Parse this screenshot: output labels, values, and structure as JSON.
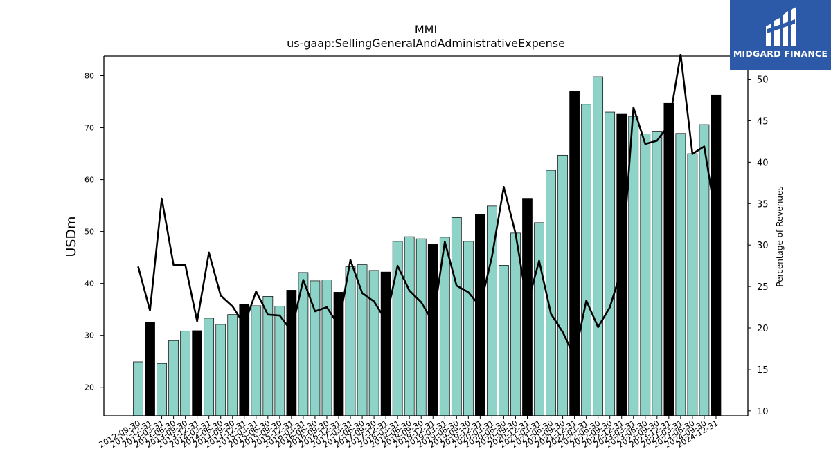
{
  "brand": {
    "name": "MIDGARD FINANCE",
    "bg_color": "#2d5aa8"
  },
  "chart_data": {
    "type": "bar",
    "title": "MMI",
    "subtitle": "us-gaap:SellingGeneralAndAdministrativeExpense",
    "ylabel": "USDm",
    "y2label": "Percentage of Revenues",
    "ylim": [
      14.5,
      83.8
    ],
    "y2lim": [
      9.4,
      52.8
    ],
    "yticks": [
      20,
      30,
      40,
      50,
      60,
      70,
      80
    ],
    "y2ticks": [
      10,
      15,
      20,
      25,
      30,
      35,
      40,
      45,
      50
    ],
    "colors": {
      "bar_quarter": "#8dd3c7",
      "bar_year_end": "#000000",
      "line": "#000000"
    },
    "categories": [
      "2012-09-30",
      "2012-12-31",
      "2013-03-31",
      "2013-06-30",
      "2013-09-30",
      "2013-12-31",
      "2014-03-31",
      "2014-06-30",
      "2014-09-30",
      "2014-12-31",
      "2015-03-31",
      "2015-06-30",
      "2015-09-30",
      "2015-12-31",
      "2016-03-31",
      "2016-06-30",
      "2016-09-30",
      "2016-12-31",
      "2017-03-31",
      "2017-06-30",
      "2017-09-30",
      "2017-12-31",
      "2018-03-31",
      "2018-06-30",
      "2018-09-30",
      "2018-12-31",
      "2019-03-31",
      "2019-06-30",
      "2019-09-30",
      "2019-12-31",
      "2020-03-31",
      "2020-06-30",
      "2020-09-30",
      "2020-12-31",
      "2021-03-31",
      "2021-06-30",
      "2021-09-30",
      "2021-12-31",
      "2022-03-31",
      "2022-06-30",
      "2022-09-30",
      "2022-12-31",
      "2023-03-31",
      "2023-06-30",
      "2023-09-30",
      "2023-12-31",
      "2024-03-31",
      "2024-06-30",
      "2024-09-30",
      "2024-12-31"
    ],
    "series": [
      {
        "values": [
          24.9,
          32.5,
          24.6,
          29.0,
          30.8,
          30.9,
          33.3,
          32.1,
          34.0,
          36.0,
          35.7,
          37.5,
          35.6,
          38.7,
          42.1,
          40.5,
          40.7,
          38.3,
          43.2,
          43.6,
          42.5,
          42.2,
          48.1,
          49.0,
          48.6,
          47.5,
          48.9,
          52.7,
          48.1,
          53.3,
          54.9,
          43.5,
          49.7,
          56.4,
          51.7,
          61.8,
          64.7,
          77.0,
          74.5,
          79.8,
          73.0,
          72.6,
          72.2,
          68.8,
          69.2,
          74.7,
          68.9,
          65.0,
          70.6,
          76.3
        ]
      },
      {
        "values": [
          27.4,
          22.1,
          35.6,
          27.6,
          27.6,
          20.8,
          29.1,
          23.9,
          22.6,
          20.4,
          24.4,
          21.6,
          21.5,
          19.6,
          25.8,
          22.0,
          22.5,
          20.3,
          28.2,
          24.2,
          23.2,
          20.9,
          27.5,
          24.5,
          23.1,
          20.7,
          30.4,
          25.1,
          24.3,
          22.6,
          28.6,
          37.0,
          31.4,
          22.8,
          28.1,
          21.7,
          19.5,
          16.5,
          23.3,
          20.1,
          22.5,
          27.1,
          46.6,
          42.2,
          42.6,
          44.5,
          53.0,
          41.0,
          41.9,
          33.1
        ]
      }
    ]
  }
}
